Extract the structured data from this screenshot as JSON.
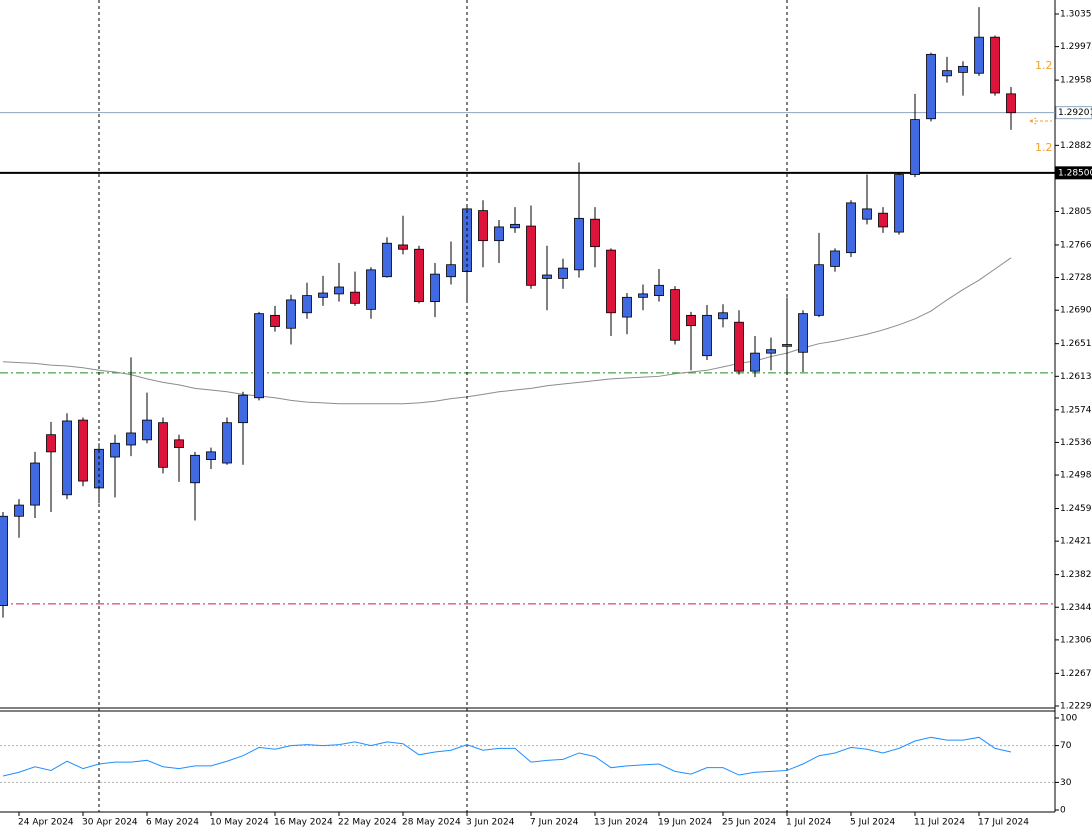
{
  "chart_data": {
    "type": "candlestick",
    "categories": [
      null,
      "24 Apr 2024",
      null,
      null,
      null,
      "30 Apr 2024",
      null,
      null,
      null,
      "6 May 2024",
      null,
      null,
      null,
      "10 May 2024",
      null,
      null,
      null,
      "16 May 2024",
      null,
      null,
      null,
      "22 May 2024",
      null,
      null,
      null,
      "28 May 2024",
      null,
      null,
      null,
      "3 Jun 2024",
      null,
      null,
      null,
      "7 Jun 2024",
      null,
      null,
      null,
      "13 Jun 2024",
      null,
      null,
      null,
      "19 Jun 2024",
      null,
      null,
      null,
      "25 Jun 2024",
      null,
      null,
      null,
      "1 Jul 2024",
      null,
      null,
      null,
      "5 Jul 2024",
      null,
      null,
      null,
      "11 Jul 2024",
      null,
      null,
      null,
      "17 Jul 2024",
      null,
      null
    ],
    "open": [
      1.2346,
      1.245,
      1.2463,
      1.2545,
      1.2475,
      1.2562,
      1.2483,
      1.2519,
      1.2533,
      1.2539,
      1.2559,
      1.2539,
      1.2489,
      1.2516,
      1.2512,
      1.2559,
      1.2588,
      1.2684,
      1.2669,
      1.2687,
      1.2705,
      1.2709,
      1.2711,
      1.2691,
      1.2729,
      1.2766,
      1.2761,
      1.27,
      1.2729,
      1.2735,
      1.2806,
      1.2771,
      1.2786,
      1.2788,
      1.2727,
      1.2727,
      1.2737,
      1.2796,
      1.276,
      1.2682,
      1.2705,
      1.2707,
      1.2714,
      1.2684,
      1.2637,
      1.268,
      1.2676,
      1.2619,
      1.264,
      1.2648,
      1.2641,
      1.2684,
      1.2741,
      1.2757,
      1.2796,
      1.2803,
      1.2781,
      1.2848,
      1.2913,
      1.2963,
      1.2967,
      1.2966,
      1.3008,
      1.2942
    ],
    "high": [
      1.2455,
      1.247,
      1.2525,
      1.256,
      1.257,
      1.2565,
      1.2535,
      1.2545,
      1.2635,
      1.2594,
      1.2565,
      1.2545,
      1.2525,
      1.253,
      1.2565,
      1.2595,
      1.2688,
      1.2695,
      1.2708,
      1.2722,
      1.273,
      1.2745,
      1.2735,
      1.274,
      1.2775,
      1.28,
      1.2765,
      1.2745,
      1.277,
      1.281,
      1.2818,
      1.2795,
      1.281,
      1.2812,
      1.2765,
      1.275,
      1.2862,
      1.281,
      1.2762,
      1.271,
      1.272,
      1.2738,
      1.2718,
      1.2688,
      1.2696,
      1.2697,
      1.269,
      1.266,
      1.2658,
      1.2705,
      1.269,
      1.278,
      1.2762,
      1.2818,
      1.2848,
      1.281,
      1.285,
      1.2942,
      1.299,
      1.2985,
      1.298,
      1.3043,
      1.301,
      1.295
    ],
    "low": [
      1.2332,
      1.2425,
      1.2448,
      1.2455,
      1.247,
      1.2485,
      1.2465,
      1.2472,
      1.252,
      1.2535,
      1.25,
      1.249,
      1.2445,
      1.2505,
      1.251,
      1.251,
      1.2585,
      1.2665,
      1.265,
      1.268,
      1.2695,
      1.27,
      1.2695,
      1.268,
      1.2728,
      1.2755,
      1.2698,
      1.2682,
      1.272,
      1.27,
      1.274,
      1.2745,
      1.278,
      1.2715,
      1.269,
      1.2715,
      1.2728,
      1.274,
      1.266,
      1.2662,
      1.269,
      1.27,
      1.265,
      1.262,
      1.2632,
      1.267,
      1.2615,
      1.2612,
      1.262,
      1.2618,
      1.2618,
      1.2682,
      1.2735,
      1.2752,
      1.279,
      1.278,
      1.2778,
      1.2845,
      1.291,
      1.2955,
      1.294,
      1.2963,
      1.294,
      1.29
    ],
    "close": [
      1.245,
      1.2463,
      1.2512,
      1.2525,
      1.2561,
      1.2491,
      1.2528,
      1.2535,
      1.2547,
      1.2562,
      1.2507,
      1.253,
      1.2521,
      1.2525,
      1.2559,
      1.2591,
      1.2686,
      1.2671,
      1.2702,
      1.2707,
      1.271,
      1.2717,
      1.2698,
      1.2737,
      1.2768,
      1.2761,
      1.27,
      1.2732,
      1.2743,
      1.2808,
      1.2771,
      1.2787,
      1.279,
      1.2719,
      1.2731,
      1.2739,
      1.2797,
      1.2764,
      1.2687,
      1.2705,
      1.2709,
      1.2719,
      1.2655,
      1.2672,
      1.2684,
      1.2687,
      1.2619,
      1.264,
      1.2644,
      1.265,
      1.2686,
      1.2743,
      1.2759,
      1.2815,
      1.2808,
      1.2787,
      1.2848,
      1.2912,
      1.2988,
      1.2969,
      1.2974,
      1.3008,
      1.2943,
      1.292
    ],
    "up_color": "#4169e1",
    "down_color": "#dc143c",
    "ma": {
      "color": "#8c8c8c",
      "values": [
        1.263,
        1.2629,
        1.2628,
        1.2626,
        1.2625,
        1.2623,
        1.262,
        1.2618,
        1.2615,
        1.261,
        1.2606,
        1.2603,
        1.2599,
        1.2597,
        1.2595,
        1.2592,
        1.259,
        1.2588,
        1.2585,
        1.2583,
        1.2582,
        1.2581,
        1.2581,
        1.2581,
        1.2581,
        1.2581,
        1.2582,
        1.2584,
        1.2587,
        1.2589,
        1.2592,
        1.2595,
        1.2597,
        1.2599,
        1.2602,
        1.2604,
        1.2606,
        1.2608,
        1.261,
        1.2611,
        1.2612,
        1.2613,
        1.2616,
        1.2618,
        1.262,
        1.2624,
        1.2628,
        1.2631,
        1.2636,
        1.264,
        1.2646,
        1.2651,
        1.2654,
        1.2658,
        1.2662,
        1.2667,
        1.2673,
        1.268,
        1.2689,
        1.2702,
        1.2714,
        1.2725,
        1.2738,
        1.2751
      ]
    },
    "ylim": [
      1.2229,
      1.3035
    ],
    "yticks": [
      {
        "value": 1.3035,
        "label": "1.30350"
      },
      {
        "value": 1.2997,
        "label": "1.29970"
      },
      {
        "value": 1.2958,
        "label": "1.29580"
      },
      {
        "value": 1.2882,
        "label": "1.28820"
      },
      {
        "value": 1.2805,
        "label": "1.28050"
      },
      {
        "value": 1.2766,
        "label": "1.27660"
      },
      {
        "value": 1.2728,
        "label": "1.27280"
      },
      {
        "value": 1.269,
        "label": "1.26900"
      },
      {
        "value": 1.2651,
        "label": "1.26510"
      },
      {
        "value": 1.2613,
        "label": "1.26130"
      },
      {
        "value": 1.2574,
        "label": "1.25740"
      },
      {
        "value": 1.2536,
        "label": "1.25360"
      },
      {
        "value": 1.2498,
        "label": "1.24980"
      },
      {
        "value": 1.2459,
        "label": "1.24590"
      },
      {
        "value": 1.2421,
        "label": "1.24210"
      },
      {
        "value": 1.2382,
        "label": "1.23820"
      },
      {
        "value": 1.2344,
        "label": "1.23440"
      },
      {
        "value": 1.2306,
        "label": "1.23060"
      },
      {
        "value": 1.2267,
        "label": "1.22670"
      },
      {
        "value": 1.2229,
        "label": "1.22290"
      }
    ],
    "hlines": [
      {
        "value": 1.29201,
        "color": "#8fa6bd",
        "style": "solid",
        "width": 1,
        "boxed": "light"
      },
      {
        "value": 1.285,
        "label": "1.28500",
        "color": "#000000",
        "style": "solid",
        "width": 2,
        "boxed": "dark"
      },
      {
        "value": 1.2617,
        "color": "#228b22",
        "style": "dashdot",
        "width": 1
      },
      {
        "value": 1.2348,
        "color": "#dc143c",
        "style": "dashdot",
        "width": 1
      }
    ],
    "annotations": [
      "1.2",
      "1.2"
    ],
    "period_separators": [
      6,
      29,
      49
    ],
    "rsi": {
      "color": "#1e90ff",
      "ylim": [
        0,
        100
      ],
      "yticks": [
        100,
        70,
        30,
        0
      ],
      "levels": [
        70,
        30
      ],
      "values": [
        37,
        41,
        47,
        43,
        53,
        45,
        50,
        52,
        52,
        54,
        47,
        45,
        48,
        48,
        53,
        59,
        68,
        66,
        70,
        71,
        70,
        71,
        74,
        70,
        74,
        72,
        60,
        63,
        65,
        71,
        65,
        67,
        67,
        52,
        54,
        55,
        62,
        58,
        46,
        48,
        49,
        50,
        42,
        39,
        46,
        46,
        38,
        41,
        42,
        43,
        50,
        59,
        62,
        68,
        66,
        62,
        67,
        75,
        79,
        76,
        76,
        79,
        67,
        63
      ]
    }
  }
}
